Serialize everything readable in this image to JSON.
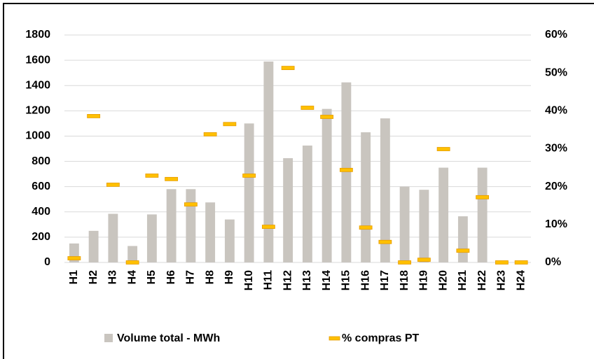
{
  "chart_data": {
    "type": "bar_dash",
    "categories": [
      "H1",
      "H2",
      "H3",
      "H4",
      "H5",
      "H6",
      "H7",
      "H8",
      "H9",
      "H10",
      "H11",
      "H12",
      "H13",
      "H14",
      "H15",
      "H16",
      "H17",
      "H18",
      "H19",
      "H20",
      "H21",
      "H22",
      "H23",
      "H24"
    ],
    "series": [
      {
        "name": "Volume total - MWh",
        "color": "#c9c5bf",
        "values": [
          150,
          250,
          385,
          130,
          380,
          580,
          580,
          475,
          340,
          1100,
          1590,
          825,
          925,
          1215,
          1425,
          1030,
          1140,
          600,
          575,
          750,
          365,
          750,
          0,
          0
        ]
      },
      {
        "name": "% compras PT",
        "color": "#ffc000",
        "axis": "y2",
        "values": [
          1.1,
          38.6,
          20.5,
          0,
          22.9,
          22,
          15.3,
          33.8,
          36.5,
          22.9,
          9.4,
          51.3,
          40.8,
          38.4,
          24.4,
          9.2,
          5.4,
          0,
          0.7,
          29.9,
          3.1,
          17.2,
          0,
          0
        ]
      }
    ],
    "ylim": [
      0,
      1800
    ],
    "yticks": [
      0,
      200,
      400,
      600,
      800,
      1000,
      1200,
      1400,
      1600,
      1800
    ],
    "y2lim": [
      0,
      60
    ],
    "y2ticks": [
      {
        "value": 0,
        "label": "0%"
      },
      {
        "value": 10,
        "label": "10%"
      },
      {
        "value": 20,
        "label": "20%"
      },
      {
        "value": 30,
        "label": "30%"
      },
      {
        "value": 40,
        "label": "40%"
      },
      {
        "value": 50,
        "label": "50%"
      },
      {
        "value": 60,
        "label": "60%"
      }
    ],
    "grid": true,
    "legend": "bottom"
  }
}
